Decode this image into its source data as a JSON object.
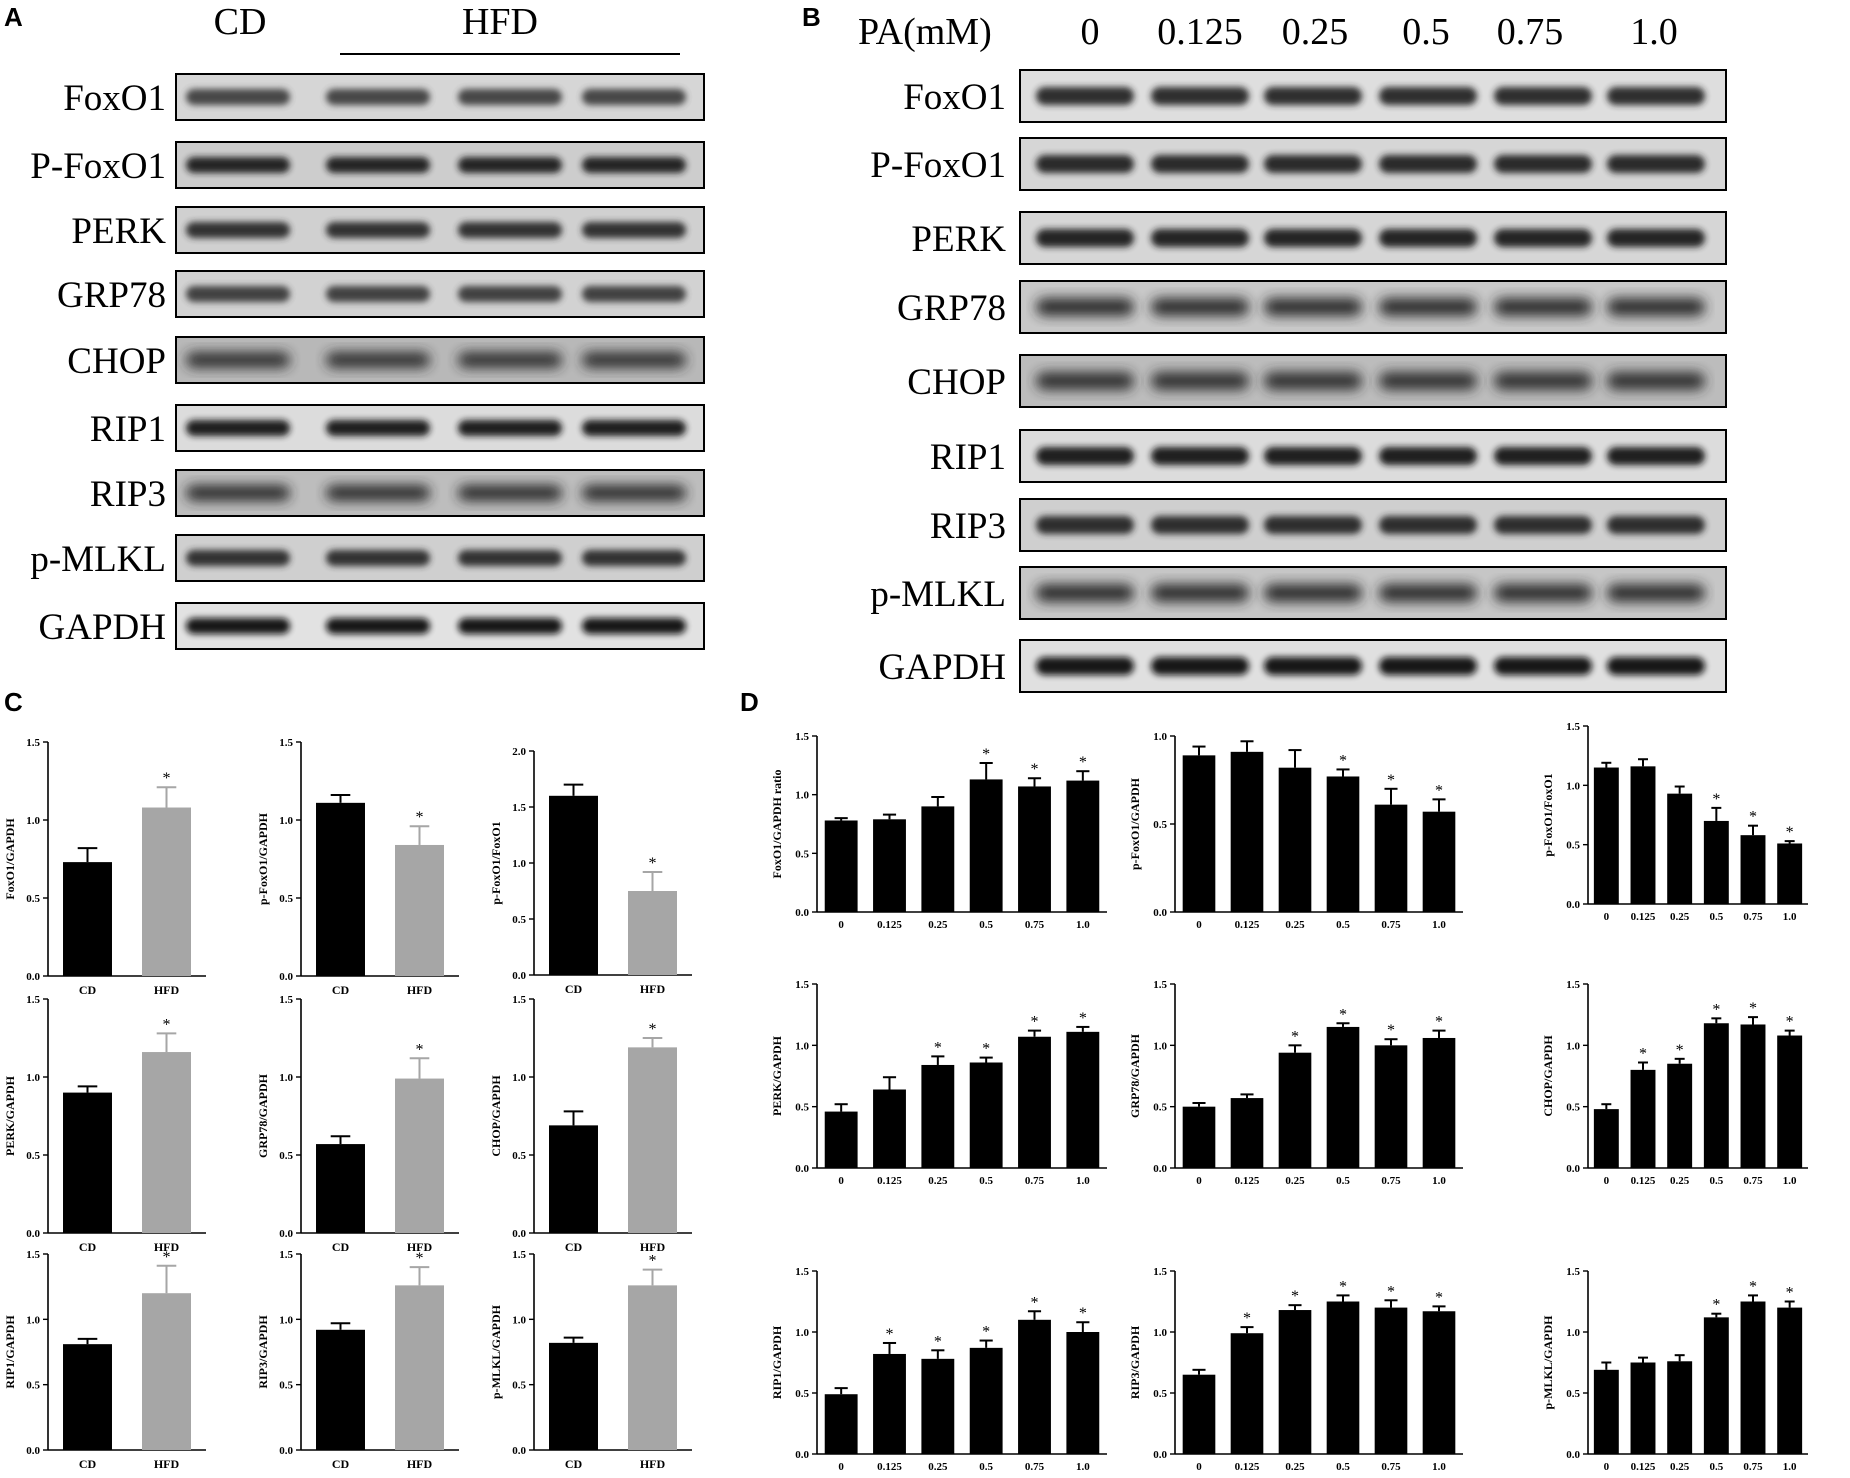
{
  "panels": {
    "A": {
      "label": "A",
      "groups": [
        {
          "label": "CD",
          "lanes": 1
        },
        {
          "label": "HFD",
          "lanes": 3
        }
      ],
      "proteins": [
        "FoxO1",
        "P-FoxO1",
        "PERK",
        "GRP78",
        "CHOP",
        "RIP1",
        "RIP3",
        "p-MLKL",
        "GAPDH"
      ]
    },
    "B": {
      "label": "B",
      "header": "PA(mM)",
      "lanes": [
        "0",
        "0.125",
        "0.25",
        "0.5",
        "0.75",
        "1.0"
      ],
      "proteins": [
        "FoxO1",
        "P-FoxO1",
        "PERK",
        "GRP78",
        "CHOP",
        "RIP1",
        "RIP3",
        "p-MLKL",
        "GAPDH"
      ]
    },
    "C": {
      "label": "C"
    },
    "D": {
      "label": "D"
    }
  },
  "colors": {
    "cd": "#000000",
    "hfd": "#a6a6a6",
    "pa": "#000000",
    "axis": "#000000"
  },
  "chart_data": [
    {
      "id": "C1",
      "type": "bar",
      "ylabel": "FoxO1/GAPDH",
      "categories": [
        "CD",
        "HFD"
      ],
      "values": [
        0.73,
        1.08
      ],
      "errors": [
        0.09,
        0.13
      ],
      "significant": [
        false,
        true
      ],
      "ylim": [
        0,
        1.5
      ],
      "yticks": [
        "0.0",
        "0.5",
        "1.0",
        "1.5"
      ]
    },
    {
      "id": "C2",
      "type": "bar",
      "ylabel": "p-FoxO1/GAPDH",
      "categories": [
        "CD",
        "HFD"
      ],
      "values": [
        1.11,
        0.84
      ],
      "errors": [
        0.05,
        0.12
      ],
      "significant": [
        false,
        true
      ],
      "ylim": [
        0,
        1.5
      ],
      "yticks": [
        "0.0",
        "0.5",
        "1.0",
        "1.5"
      ]
    },
    {
      "id": "C3",
      "type": "bar",
      "ylabel": "p-FoxO1/FoxO1",
      "categories": [
        "CD",
        "HFD"
      ],
      "values": [
        1.6,
        0.75
      ],
      "errors": [
        0.1,
        0.17
      ],
      "significant": [
        false,
        true
      ],
      "ylim": [
        0,
        2.0
      ],
      "yticks": [
        "0.0",
        "0.5",
        "1.0",
        "1.5",
        "2.0"
      ]
    },
    {
      "id": "C4",
      "type": "bar",
      "ylabel": "PERK/GAPDH",
      "categories": [
        "CD",
        "HFD"
      ],
      "values": [
        0.9,
        1.16
      ],
      "errors": [
        0.04,
        0.12
      ],
      "significant": [
        false,
        true
      ],
      "ylim": [
        0,
        1.5
      ],
      "yticks": [
        "0.0",
        "0.5",
        "1.0",
        "1.5"
      ]
    },
    {
      "id": "C5",
      "type": "bar",
      "ylabel": "GRP78/GAPDH",
      "categories": [
        "CD",
        "HFD"
      ],
      "values": [
        0.57,
        0.99
      ],
      "errors": [
        0.05,
        0.13
      ],
      "significant": [
        false,
        true
      ],
      "ylim": [
        0,
        1.5
      ],
      "yticks": [
        "0.0",
        "0.5",
        "1.0",
        "1.5"
      ]
    },
    {
      "id": "C6",
      "type": "bar",
      "ylabel": "CHOP/GAPDH",
      "categories": [
        "CD",
        "HFD"
      ],
      "values": [
        0.69,
        1.19
      ],
      "errors": [
        0.09,
        0.06
      ],
      "significant": [
        false,
        true
      ],
      "ylim": [
        0,
        1.5
      ],
      "yticks": [
        "0.0",
        "0.5",
        "1.0",
        "1.5"
      ]
    },
    {
      "id": "C7",
      "type": "bar",
      "ylabel": "RIP1/GAPDH",
      "categories": [
        "CD",
        "HFD"
      ],
      "values": [
        0.81,
        1.2
      ],
      "errors": [
        0.04,
        0.21
      ],
      "significant": [
        false,
        true
      ],
      "ylim": [
        0,
        1.5
      ],
      "yticks": [
        "0.0",
        "0.5",
        "1.0",
        "1.5"
      ]
    },
    {
      "id": "C8",
      "type": "bar",
      "ylabel": "RIP3/GAPDH",
      "categories": [
        "CD",
        "HFD"
      ],
      "values": [
        0.92,
        1.26
      ],
      "errors": [
        0.05,
        0.14
      ],
      "significant": [
        false,
        true
      ],
      "ylim": [
        0,
        1.5
      ],
      "yticks": [
        "0.0",
        "0.5",
        "1.0",
        "1.5"
      ]
    },
    {
      "id": "C9",
      "type": "bar",
      "ylabel": "p-MLKL/GAPDH",
      "categories": [
        "CD",
        "HFD"
      ],
      "values": [
        0.82,
        1.26
      ],
      "errors": [
        0.04,
        0.12
      ],
      "significant": [
        false,
        true
      ],
      "ylim": [
        0,
        1.5
      ],
      "yticks": [
        "0.0",
        "0.5",
        "1.0",
        "1.5"
      ]
    },
    {
      "id": "D1",
      "type": "bar",
      "ylabel": "FoxO1/GAPDH ratio",
      "categories": [
        "0",
        "0.125",
        "0.25",
        "0.5",
        "0.75",
        "1.0"
      ],
      "values": [
        0.78,
        0.79,
        0.9,
        1.13,
        1.07,
        1.12
      ],
      "errors": [
        0.02,
        0.04,
        0.08,
        0.14,
        0.07,
        0.08
      ],
      "significant": [
        false,
        false,
        false,
        true,
        true,
        true
      ],
      "ylim": [
        0,
        1.5
      ],
      "yticks": [
        "0.0",
        "0.5",
        "1.0",
        "1.5"
      ]
    },
    {
      "id": "D2",
      "type": "bar",
      "ylabel": "p-FoxO1/GAPDH",
      "categories": [
        "0",
        "0.125",
        "0.25",
        "0.5",
        "0.75",
        "1.0"
      ],
      "values": [
        0.89,
        0.91,
        0.82,
        0.77,
        0.61,
        0.57
      ],
      "errors": [
        0.05,
        0.06,
        0.1,
        0.04,
        0.09,
        0.07
      ],
      "significant": [
        false,
        false,
        false,
        true,
        true,
        true
      ],
      "ylim": [
        0,
        1.0
      ],
      "yticks": [
        "0.0",
        "0.5",
        "1.0"
      ]
    },
    {
      "id": "D3",
      "type": "bar",
      "ylabel": "p-FoxO1/FoxO1",
      "categories": [
        "0",
        "0.125",
        "0.25",
        "0.5",
        "0.75",
        "1.0"
      ],
      "values": [
        1.15,
        1.16,
        0.93,
        0.7,
        0.58,
        0.51
      ],
      "errors": [
        0.04,
        0.06,
        0.06,
        0.11,
        0.08,
        0.02
      ],
      "significant": [
        false,
        false,
        false,
        true,
        true,
        true
      ],
      "ylim": [
        0,
        1.5
      ],
      "yticks": [
        "0.0",
        "0.5",
        "1.0",
        "1.5"
      ]
    },
    {
      "id": "D4",
      "type": "bar",
      "ylabel": "PERK/GAPDH",
      "categories": [
        "0",
        "0.125",
        "0.25",
        "0.5",
        "0.75",
        "1.0"
      ],
      "values": [
        0.46,
        0.64,
        0.84,
        0.86,
        1.07,
        1.11
      ],
      "errors": [
        0.06,
        0.1,
        0.07,
        0.04,
        0.05,
        0.04
      ],
      "significant": [
        false,
        false,
        true,
        true,
        true,
        true
      ],
      "ylim": [
        0,
        1.5
      ],
      "yticks": [
        "0.0",
        "0.5",
        "1.0",
        "1.5"
      ]
    },
    {
      "id": "D5",
      "type": "bar",
      "ylabel": "GRP78/GAPDH",
      "categories": [
        "0",
        "0.125",
        "0.25",
        "0.5",
        "0.75",
        "1.0"
      ],
      "values": [
        0.5,
        0.57,
        0.94,
        1.15,
        1.0,
        1.06
      ],
      "errors": [
        0.03,
        0.03,
        0.06,
        0.03,
        0.05,
        0.06
      ],
      "significant": [
        false,
        false,
        true,
        true,
        true,
        true
      ],
      "ylim": [
        0,
        1.5
      ],
      "yticks": [
        "0.0",
        "0.5",
        "1.0",
        "1.5"
      ]
    },
    {
      "id": "D6",
      "type": "bar",
      "ylabel": "CHOP/GAPDH",
      "categories": [
        "0",
        "0.125",
        "0.25",
        "0.5",
        "0.75",
        "1.0"
      ],
      "values": [
        0.48,
        0.8,
        0.85,
        1.18,
        1.17,
        1.08
      ],
      "errors": [
        0.04,
        0.06,
        0.04,
        0.04,
        0.06,
        0.04
      ],
      "significant": [
        false,
        true,
        true,
        true,
        true,
        true
      ],
      "ylim": [
        0,
        1.5
      ],
      "yticks": [
        "0.0",
        "0.5",
        "1.0",
        "1.5"
      ]
    },
    {
      "id": "D7",
      "type": "bar",
      "ylabel": "RIP1/GAPDH",
      "categories": [
        "0",
        "0.125",
        "0.25",
        "0.5",
        "0.75",
        "1.0"
      ],
      "values": [
        0.49,
        0.82,
        0.78,
        0.87,
        1.1,
        1.0
      ],
      "errors": [
        0.05,
        0.09,
        0.07,
        0.06,
        0.07,
        0.08
      ],
      "significant": [
        false,
        true,
        true,
        true,
        true,
        true
      ],
      "ylim": [
        0,
        1.5
      ],
      "yticks": [
        "0.0",
        "0.5",
        "1.0",
        "1.5"
      ]
    },
    {
      "id": "D8",
      "type": "bar",
      "ylabel": "RIP3/GAPDH",
      "categories": [
        "0",
        "0.125",
        "0.25",
        "0.5",
        "0.75",
        "1.0"
      ],
      "values": [
        0.65,
        0.99,
        1.18,
        1.25,
        1.2,
        1.17
      ],
      "errors": [
        0.04,
        0.05,
        0.04,
        0.05,
        0.06,
        0.04
      ],
      "significant": [
        false,
        true,
        true,
        true,
        true,
        true
      ],
      "ylim": [
        0,
        1.5
      ],
      "yticks": [
        "0.0",
        "0.5",
        "1.0",
        "1.5"
      ]
    },
    {
      "id": "D9",
      "type": "bar",
      "ylabel": "p-MLKL/GAPDH",
      "categories": [
        "0",
        "0.125",
        "0.25",
        "0.5",
        "0.75",
        "1.0"
      ],
      "values": [
        0.69,
        0.75,
        0.76,
        1.12,
        1.25,
        1.2
      ],
      "errors": [
        0.06,
        0.04,
        0.05,
        0.03,
        0.05,
        0.05
      ],
      "significant": [
        false,
        false,
        false,
        true,
        true,
        true
      ],
      "ylim": [
        0,
        1.5
      ],
      "yticks": [
        "0.0",
        "0.5",
        "1.0",
        "1.5"
      ]
    }
  ]
}
